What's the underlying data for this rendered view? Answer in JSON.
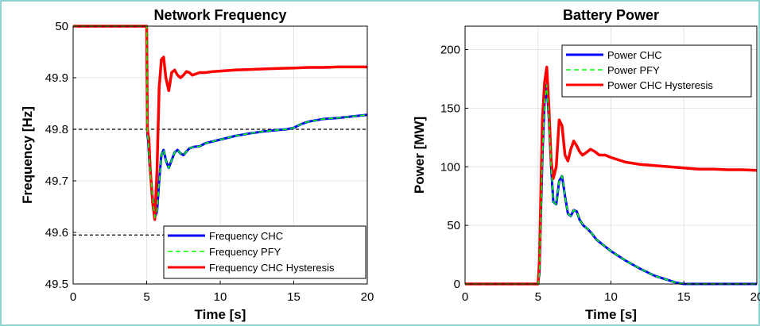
{
  "chart_data": [
    {
      "type": "line",
      "title": "Network Frequency",
      "xlabel": "Time [s]",
      "ylabel": "Frequency [Hz]",
      "xlim": [
        0,
        20
      ],
      "ylim": [
        49.5,
        50.0
      ],
      "xticks": [
        "0",
        "5",
        "10",
        "15",
        "20"
      ],
      "yticks": [
        "49.5",
        "49.6",
        "49.7",
        "49.8",
        "49.9",
        "50"
      ],
      "grid": true,
      "legend_position": "bottom-right",
      "reference_lines": [
        49.8,
        49.595
      ],
      "series": [
        {
          "name": "Frequency CHC",
          "color": "#0000ff",
          "dash": "solid",
          "x": [
            0,
            5,
            5.05,
            5.1,
            5.2,
            5.4,
            5.55,
            5.7,
            5.85,
            6.0,
            6.15,
            6.3,
            6.5,
            6.7,
            6.9,
            7.1,
            7.3,
            7.5,
            7.7,
            7.9,
            8.2,
            8.6,
            9,
            10,
            11,
            12,
            13,
            14,
            14.5,
            15,
            15.5,
            16,
            17,
            18,
            19,
            20
          ],
          "y": [
            50.0,
            50.0,
            49.79,
            49.78,
            49.73,
            49.67,
            49.63,
            49.64,
            49.7,
            49.75,
            49.76,
            49.74,
            49.725,
            49.74,
            49.755,
            49.76,
            49.753,
            49.75,
            49.757,
            49.763,
            49.766,
            49.767,
            49.773,
            49.78,
            49.787,
            49.792,
            49.796,
            49.799,
            49.8,
            49.803,
            49.81,
            49.815,
            49.82,
            49.822,
            49.825,
            49.828
          ]
        },
        {
          "name": "Frequency PFY",
          "color": "#00ff00",
          "dash": "dashed",
          "x": [
            0,
            5,
            5.05,
            5.1,
            5.2,
            5.4,
            5.55,
            5.7,
            5.85,
            6.0,
            6.15,
            6.3,
            6.5,
            6.7,
            6.9,
            7.1,
            7.3,
            7.5,
            7.7,
            7.9,
            8.2,
            8.6,
            9,
            10,
            11,
            12,
            13,
            14,
            14.5,
            15,
            15.5,
            16,
            17,
            18,
            19,
            20
          ],
          "y": [
            50.0,
            50.0,
            49.79,
            49.78,
            49.73,
            49.67,
            49.63,
            49.64,
            49.7,
            49.75,
            49.76,
            49.74,
            49.725,
            49.74,
            49.755,
            49.76,
            49.753,
            49.75,
            49.757,
            49.763,
            49.766,
            49.767,
            49.773,
            49.78,
            49.787,
            49.792,
            49.796,
            49.799,
            49.8,
            49.803,
            49.81,
            49.815,
            49.82,
            49.822,
            49.825,
            49.828
          ]
        },
        {
          "name": "Frequency CHC Hysteresis",
          "color": "#ff0000",
          "dash": "solid",
          "x": [
            0,
            5,
            5.05,
            5.15,
            5.25,
            5.4,
            5.55,
            5.7,
            5.85,
            6.0,
            6.15,
            6.3,
            6.5,
            6.7,
            6.9,
            7.1,
            7.3,
            7.5,
            7.7,
            7.9,
            8.1,
            8.3,
            8.6,
            9,
            9.5,
            10,
            11,
            12,
            13,
            14,
            15,
            16,
            17,
            18,
            19,
            20
          ],
          "y": [
            50.0,
            50.0,
            49.8,
            49.78,
            49.72,
            49.66,
            49.625,
            49.72,
            49.88,
            49.935,
            49.94,
            49.9,
            49.875,
            49.91,
            49.915,
            49.905,
            49.9,
            49.905,
            49.912,
            49.91,
            49.905,
            49.907,
            49.91,
            49.91,
            49.912,
            49.913,
            49.915,
            49.916,
            49.917,
            49.918,
            49.919,
            49.92,
            49.92,
            49.921,
            49.921,
            49.921
          ]
        }
      ]
    },
    {
      "type": "line",
      "title": "Battery Power",
      "xlabel": "Time [s]",
      "ylabel": "Power [MW]",
      "xlim": [
        0,
        20
      ],
      "ylim": [
        0,
        220
      ],
      "xticks": [
        "0",
        "5",
        "10",
        "15",
        "20"
      ],
      "yticks": [
        "0",
        "50",
        "100",
        "150",
        "200"
      ],
      "grid": true,
      "legend_position": "top-right",
      "series": [
        {
          "name": "Power CHC",
          "color": "#0000ff",
          "dash": "solid",
          "x": [
            0,
            5,
            5.1,
            5.2,
            5.3,
            5.45,
            5.6,
            5.75,
            5.9,
            6.05,
            6.25,
            6.45,
            6.65,
            6.85,
            7.05,
            7.25,
            7.45,
            7.65,
            7.85,
            8.1,
            8.4,
            8.7,
            9.0,
            9.5,
            10,
            11,
            12,
            13,
            14,
            14.5,
            15,
            16,
            17,
            18,
            19,
            20
          ],
          "y": [
            0,
            0,
            10,
            60,
            110,
            155,
            170,
            140,
            100,
            70,
            68,
            88,
            92,
            75,
            60,
            58,
            63,
            62,
            55,
            50,
            47,
            43,
            38,
            33,
            28,
            20,
            13,
            7,
            3,
            1,
            0,
            0,
            0,
            0,
            0,
            0
          ]
        },
        {
          "name": "Power PFY",
          "color": "#00ff00",
          "dash": "dashed",
          "x": [
            0,
            5,
            5.1,
            5.2,
            5.3,
            5.45,
            5.6,
            5.75,
            5.9,
            6.05,
            6.25,
            6.45,
            6.65,
            6.85,
            7.05,
            7.25,
            7.45,
            7.65,
            7.85,
            8.1,
            8.4,
            8.7,
            9.0,
            9.5,
            10,
            11,
            12,
            13,
            14,
            14.5,
            15,
            16,
            17,
            18,
            19,
            20
          ],
          "y": [
            0,
            0,
            10,
            60,
            110,
            155,
            170,
            140,
            100,
            70,
            68,
            88,
            92,
            75,
            60,
            58,
            63,
            62,
            55,
            50,
            47,
            43,
            38,
            33,
            28,
            20,
            13,
            7,
            3,
            1,
            0,
            0,
            0,
            0,
            0,
            0
          ]
        },
        {
          "name": "Power CHC Hysteresis",
          "color": "#ff0000",
          "dash": "solid",
          "x": [
            0,
            5,
            5.1,
            5.2,
            5.3,
            5.45,
            5.6,
            5.75,
            5.9,
            6.05,
            6.25,
            6.45,
            6.65,
            6.85,
            7.05,
            7.25,
            7.45,
            7.65,
            7.85,
            8.05,
            8.3,
            8.6,
            8.9,
            9.2,
            9.6,
            10,
            11,
            12,
            13,
            14,
            15,
            16,
            17,
            18,
            19,
            20
          ],
          "y": [
            0,
            0,
            20,
            80,
            140,
            172,
            185,
            150,
            105,
            90,
            100,
            140,
            135,
            110,
            105,
            115,
            122,
            118,
            113,
            110,
            112,
            115,
            113,
            110,
            110,
            108,
            104,
            102,
            101,
            100,
            99,
            98,
            98,
            97.5,
            97.5,
            97
          ]
        }
      ]
    }
  ]
}
